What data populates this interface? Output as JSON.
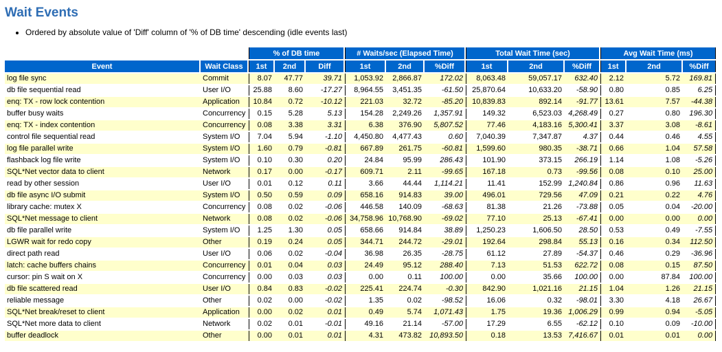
{
  "page": {
    "title": "Wait Events",
    "note": "Ordered by absolute value of 'Diff' column of '% of DB time' descending (idle events last)"
  },
  "colors": {
    "title_text": "#2E6DB4",
    "header_bg": "#0066CC",
    "header_text": "#FFFFFF",
    "row_alt_bg": "#FFFFCC",
    "row_bg": "#FFFFFF",
    "group_rule": "#000000"
  },
  "table": {
    "event_header": "Event",
    "wait_class_header": "Wait Class",
    "groups": [
      {
        "label": "% of DB time",
        "cols": [
          "1st",
          "2nd",
          "Diff"
        ]
      },
      {
        "label": "# Waits/sec (Elapsed Time)",
        "cols": [
          "1st",
          "2nd",
          "%Diff"
        ]
      },
      {
        "label": "Total Wait Time (sec)",
        "cols": [
          "1st",
          "2nd",
          "%Diff"
        ]
      },
      {
        "label": "Avg Wait Time (ms)",
        "cols": [
          "1st",
          "2nd",
          "%Diff"
        ]
      }
    ],
    "rows": [
      {
        "event": "log file sync",
        "wait_class": "Commit",
        "values": [
          "8.07",
          "47.77",
          "39.71",
          "1,053.92",
          "2,866.87",
          "172.02",
          "8,063.48",
          "59,057.17",
          "632.40",
          "2.12",
          "5.72",
          "169.81"
        ]
      },
      {
        "event": "db file sequential read",
        "wait_class": "User I/O",
        "values": [
          "25.88",
          "8.60",
          "-17.27",
          "8,964.55",
          "3,451.35",
          "-61.50",
          "25,870.64",
          "10,633.20",
          "-58.90",
          "0.80",
          "0.85",
          "6.25"
        ]
      },
      {
        "event": "enq: TX - row lock contention",
        "wait_class": "Application",
        "values": [
          "10.84",
          "0.72",
          "-10.12",
          "221.03",
          "32.72",
          "-85.20",
          "10,839.83",
          "892.14",
          "-91.77",
          "13.61",
          "7.57",
          "-44.38"
        ]
      },
      {
        "event": "buffer busy waits",
        "wait_class": "Concurrency",
        "values": [
          "0.15",
          "5.28",
          "5.13",
          "154.28",
          "2,249.26",
          "1,357.91",
          "149.32",
          "6,523.03",
          "4,268.49",
          "0.27",
          "0.80",
          "196.30"
        ]
      },
      {
        "event": "enq: TX - index contention",
        "wait_class": "Concurrency",
        "values": [
          "0.08",
          "3.38",
          "3.31",
          "6.38",
          "376.90",
          "5,807.52",
          "77.46",
          "4,183.16",
          "5,300.41",
          "3.37",
          "3.08",
          "-8.61"
        ]
      },
      {
        "event": "control file sequential read",
        "wait_class": "System I/O",
        "values": [
          "7.04",
          "5.94",
          "-1.10",
          "4,450.80",
          "4,477.43",
          "0.60",
          "7,040.39",
          "7,347.87",
          "4.37",
          "0.44",
          "0.46",
          "4.55"
        ]
      },
      {
        "event": "log file parallel write",
        "wait_class": "System I/O",
        "values": [
          "1.60",
          "0.79",
          "-0.81",
          "667.89",
          "261.75",
          "-60.81",
          "1,599.60",
          "980.35",
          "-38.71",
          "0.66",
          "1.04",
          "57.58"
        ]
      },
      {
        "event": "flashback log file write",
        "wait_class": "System I/O",
        "values": [
          "0.10",
          "0.30",
          "0.20",
          "24.84",
          "95.99",
          "286.43",
          "101.90",
          "373.15",
          "266.19",
          "1.14",
          "1.08",
          "-5.26"
        ]
      },
      {
        "event": "SQL*Net vector data to client",
        "wait_class": "Network",
        "values": [
          "0.17",
          "0.00",
          "-0.17",
          "609.71",
          "2.11",
          "-99.65",
          "167.18",
          "0.73",
          "-99.56",
          "0.08",
          "0.10",
          "25.00"
        ]
      },
      {
        "event": "read by other session",
        "wait_class": "User I/O",
        "values": [
          "0.01",
          "0.12",
          "0.11",
          "3.66",
          "44.44",
          "1,114.21",
          "11.41",
          "152.99",
          "1,240.84",
          "0.86",
          "0.96",
          "11.63"
        ]
      },
      {
        "event": "db file async I/O submit",
        "wait_class": "System I/O",
        "values": [
          "0.50",
          "0.59",
          "0.09",
          "658.16",
          "914.83",
          "39.00",
          "496.01",
          "729.56",
          "47.09",
          "0.21",
          "0.22",
          "4.76"
        ]
      },
      {
        "event": "library cache: mutex X",
        "wait_class": "Concurrency",
        "values": [
          "0.08",
          "0.02",
          "-0.06",
          "446.58",
          "140.09",
          "-68.63",
          "81.38",
          "21.26",
          "-73.88",
          "0.05",
          "0.04",
          "-20.00"
        ]
      },
      {
        "event": "SQL*Net message to client",
        "wait_class": "Network",
        "values": [
          "0.08",
          "0.02",
          "-0.06",
          "34,758.96",
          "10,768.90",
          "-69.02",
          "77.10",
          "25.13",
          "-67.41",
          "0.00",
          "0.00",
          "0.00"
        ]
      },
      {
        "event": "db file parallel write",
        "wait_class": "System I/O",
        "values": [
          "1.25",
          "1.30",
          "0.05",
          "658.66",
          "914.84",
          "38.89",
          "1,250.23",
          "1,606.50",
          "28.50",
          "0.53",
          "0.49",
          "-7.55"
        ]
      },
      {
        "event": "LGWR wait for redo copy",
        "wait_class": "Other",
        "values": [
          "0.19",
          "0.24",
          "0.05",
          "344.71",
          "244.72",
          "-29.01",
          "192.64",
          "298.84",
          "55.13",
          "0.16",
          "0.34",
          "112.50"
        ]
      },
      {
        "event": "direct path read",
        "wait_class": "User I/O",
        "values": [
          "0.06",
          "0.02",
          "-0.04",
          "36.98",
          "26.35",
          "-28.75",
          "61.12",
          "27.89",
          "-54.37",
          "0.46",
          "0.29",
          "-36.96"
        ]
      },
      {
        "event": "latch: cache buffers chains",
        "wait_class": "Concurrency",
        "values": [
          "0.01",
          "0.04",
          "0.03",
          "24.49",
          "95.12",
          "288.40",
          "7.13",
          "51.53",
          "622.72",
          "0.08",
          "0.15",
          "87.50"
        ]
      },
      {
        "event": "cursor: pin S wait on X",
        "wait_class": "Concurrency",
        "values": [
          "0.00",
          "0.03",
          "0.03",
          "0.00",
          "0.11",
          "100.00",
          "0.00",
          "35.66",
          "100.00",
          "0.00",
          "87.84",
          "100.00"
        ]
      },
      {
        "event": "db file scattered read",
        "wait_class": "User I/O",
        "values": [
          "0.84",
          "0.83",
          "-0.02",
          "225.41",
          "224.74",
          "-0.30",
          "842.90",
          "1,021.16",
          "21.15",
          "1.04",
          "1.26",
          "21.15"
        ]
      },
      {
        "event": "reliable message",
        "wait_class": "Other",
        "values": [
          "0.02",
          "0.00",
          "-0.02",
          "1.35",
          "0.02",
          "-98.52",
          "16.06",
          "0.32",
          "-98.01",
          "3.30",
          "4.18",
          "26.67"
        ]
      },
      {
        "event": "SQL*Net break/reset to client",
        "wait_class": "Application",
        "values": [
          "0.00",
          "0.02",
          "0.01",
          "0.49",
          "5.74",
          "1,071.43",
          "1.75",
          "19.36",
          "1,006.29",
          "0.99",
          "0.94",
          "-5.05"
        ]
      },
      {
        "event": "SQL*Net more data to client",
        "wait_class": "Network",
        "values": [
          "0.02",
          "0.01",
          "-0.01",
          "49.16",
          "21.14",
          "-57.00",
          "17.29",
          "6.55",
          "-62.12",
          "0.10",
          "0.09",
          "-10.00"
        ]
      },
      {
        "event": "buffer deadlock",
        "wait_class": "Other",
        "values": [
          "0.00",
          "0.01",
          "0.01",
          "4.31",
          "473.82",
          "10,893.50",
          "0.18",
          "13.53",
          "7,416.67",
          "0.01",
          "0.01",
          "0.00"
        ]
      }
    ]
  }
}
